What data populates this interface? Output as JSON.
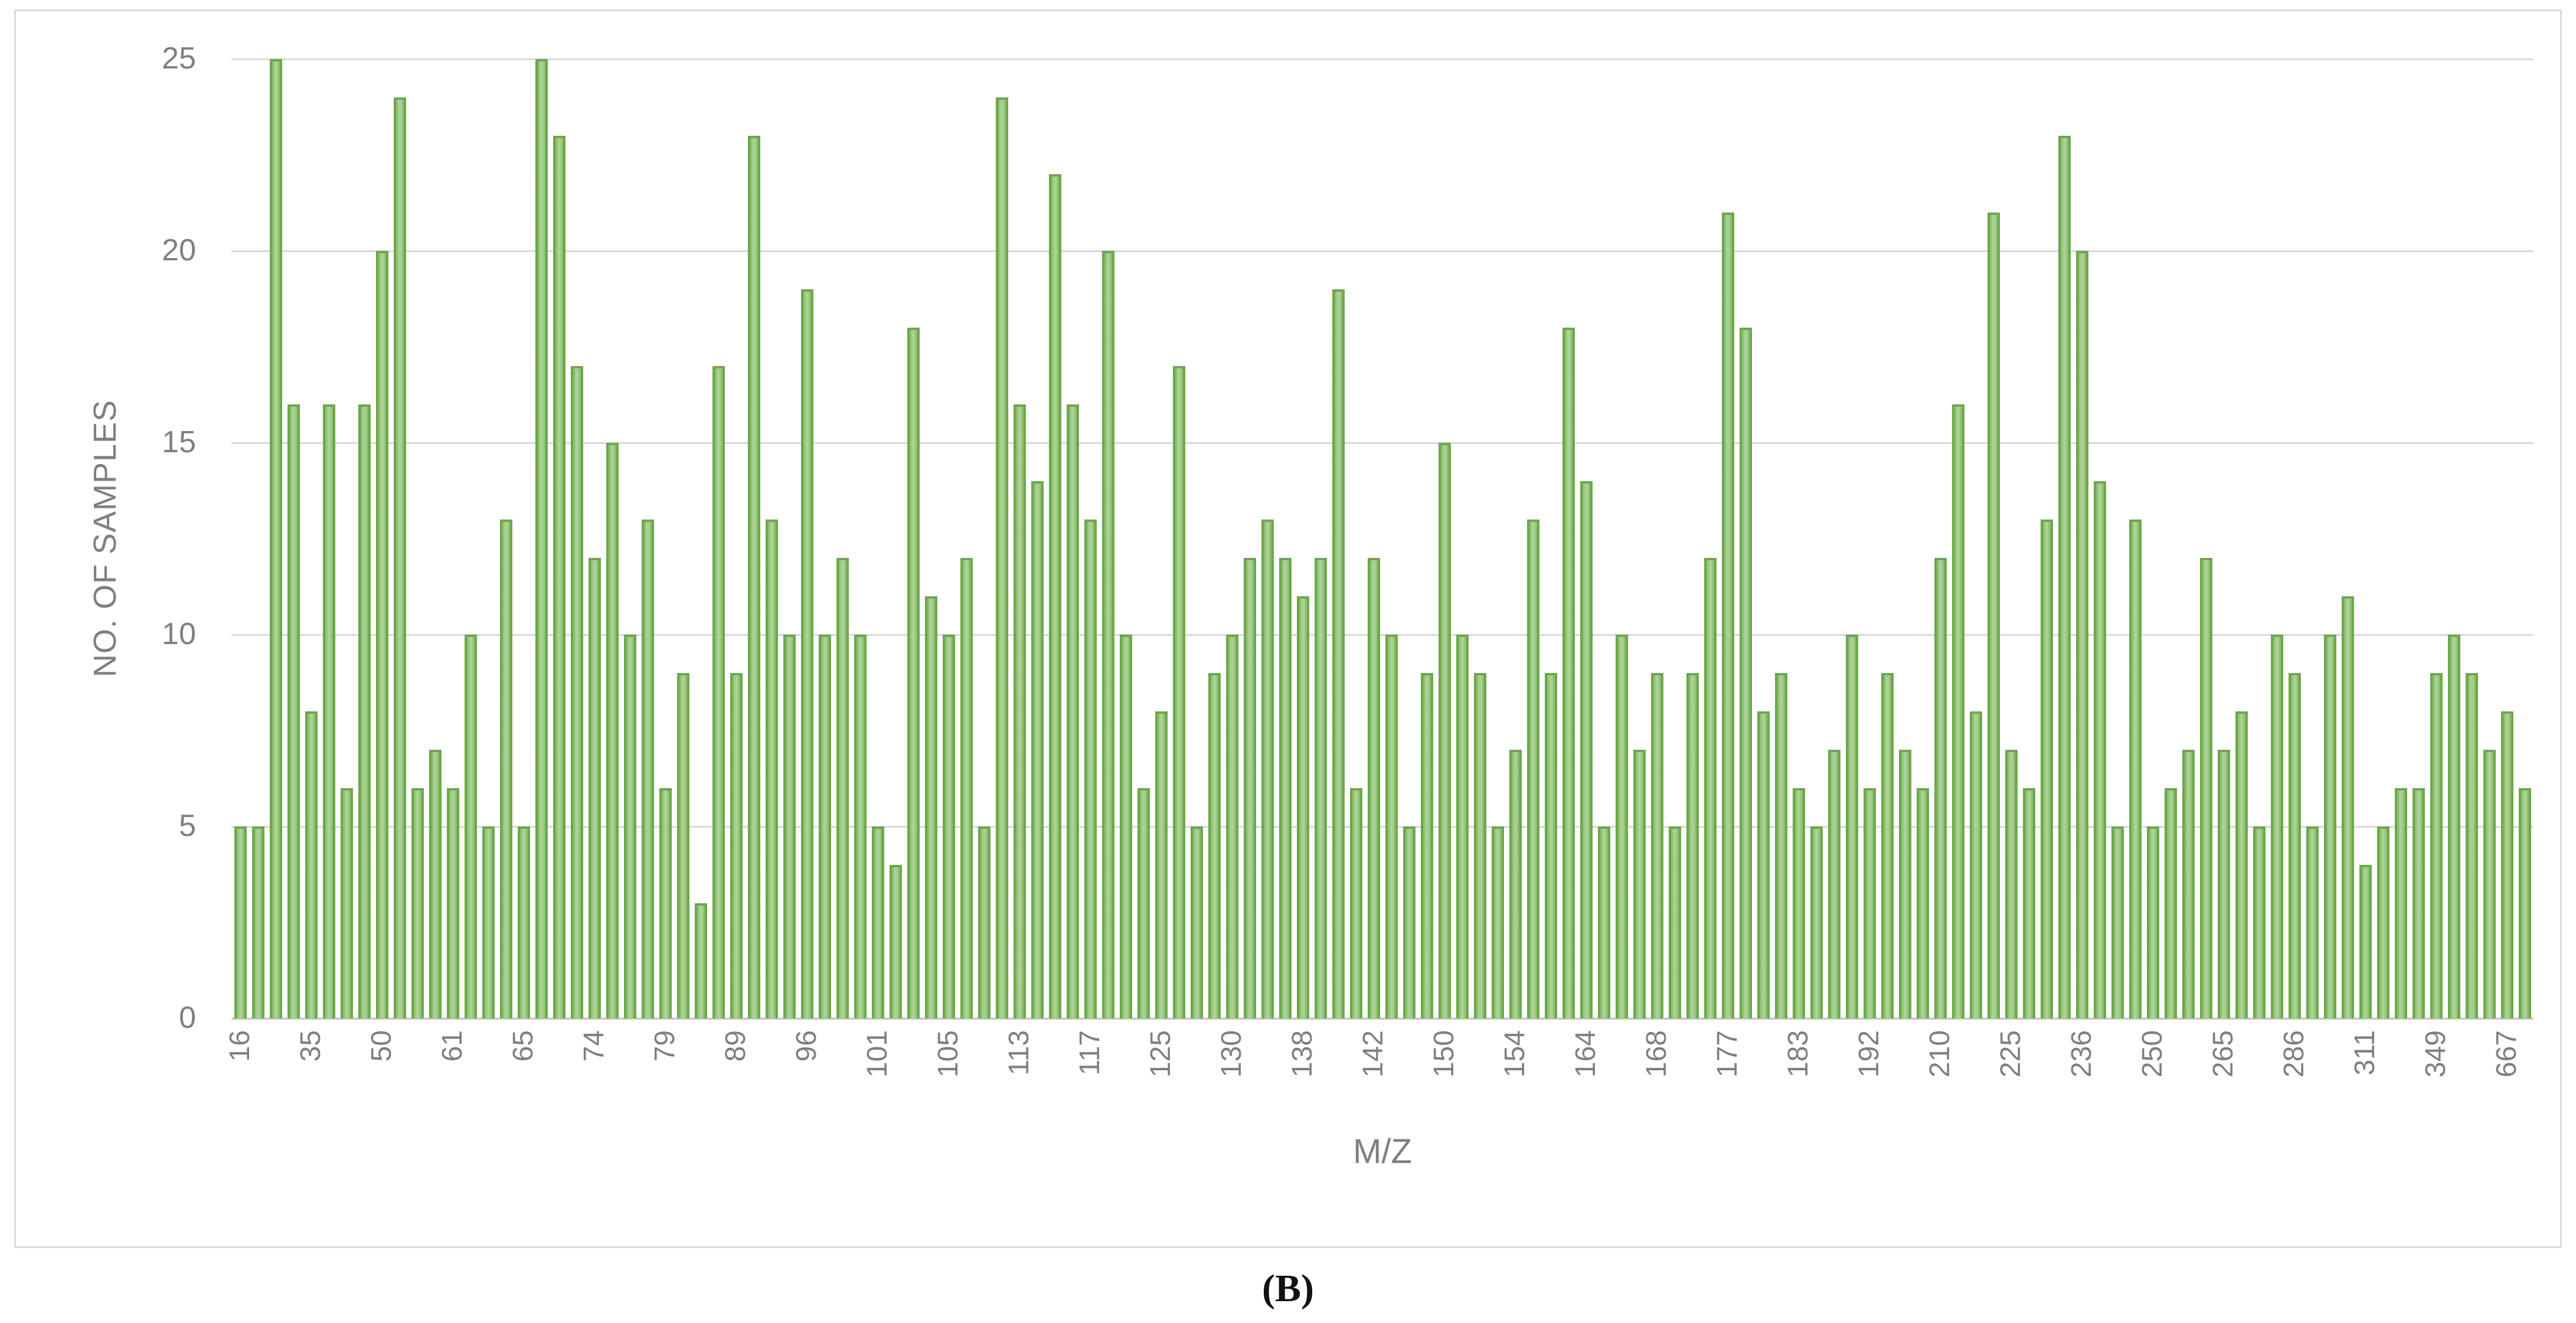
{
  "figure": {
    "caption": "(B)"
  },
  "chart_data": {
    "type": "bar",
    "title": "",
    "xlabel": "M/Z",
    "ylabel": "NO. OF SAMPLES",
    "ylim": [
      0,
      25
    ],
    "yticks": [
      0,
      5,
      10,
      15,
      20,
      25
    ],
    "grid": "horizontal",
    "legend": "none",
    "n_bars": 130,
    "x_tick_every": 4,
    "x_tick_labels": [
      "16",
      "35",
      "50",
      "61",
      "65",
      "74",
      "79",
      "89",
      "96",
      "101",
      "105",
      "113",
      "117",
      "125",
      "130",
      "138",
      "142",
      "150",
      "154",
      "164",
      "168",
      "177",
      "183",
      "192",
      "210",
      "225",
      "236",
      "250",
      "265",
      "286",
      "311",
      "349",
      "667"
    ],
    "values": [
      5,
      5,
      25,
      16,
      8,
      16,
      6,
      16,
      20,
      24,
      6,
      7,
      6,
      10,
      5,
      13,
      5,
      25,
      23,
      17,
      12,
      15,
      10,
      13,
      6,
      9,
      3,
      17,
      9,
      23,
      13,
      10,
      19,
      10,
      12,
      10,
      5,
      4,
      18,
      11,
      10,
      12,
      5,
      24,
      16,
      14,
      22,
      16,
      13,
      20,
      10,
      6,
      8,
      17,
      5,
      9,
      10,
      12,
      13,
      12,
      11,
      12,
      19,
      6,
      12,
      10,
      5,
      9,
      15,
      10,
      9,
      5,
      7,
      13,
      9,
      18,
      14,
      5,
      10,
      7,
      9,
      5,
      9,
      12,
      21,
      18,
      8,
      9,
      6,
      5,
      7,
      10,
      6,
      9,
      7,
      6,
      12,
      16,
      8,
      21,
      7,
      6,
      13,
      23,
      20,
      14,
      5,
      13,
      5,
      6,
      7,
      12,
      7,
      8,
      5,
      10,
      9,
      5,
      10,
      11,
      4,
      5,
      6,
      6,
      9,
      10,
      9,
      7,
      8,
      6
    ],
    "colors": {
      "bar_border": "#6da84b",
      "bar_fill": "#a7cf8e",
      "gridline": "#d9d9d9",
      "axis_line": "#c2c2c2",
      "tick_text": "#7f7f7f"
    }
  }
}
